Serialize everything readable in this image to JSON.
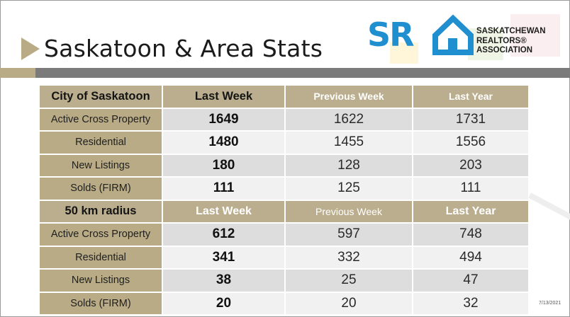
{
  "page_title": "Saskatoon & Area Stats",
  "logo": {
    "letters": "SR",
    "lines": [
      "SASKATCHEWAN",
      "REALTORS®",
      "ASSOCIATION"
    ],
    "brand_color": "#1f8fcf"
  },
  "colors": {
    "gold": "#b9ab86",
    "gray_bar": "#7b7b7b"
  },
  "table": {
    "sections": [
      {
        "headers": [
          "City of Saskatoon",
          "Last Week",
          "Previous Week",
          "Last Year"
        ],
        "rows": [
          {
            "label": "Active Cross Property",
            "last_week": "1649",
            "previous_week": "1622",
            "last_year": "1731"
          },
          {
            "label": "Residential",
            "last_week": "1480",
            "previous_week": "1455",
            "last_year": "1556"
          },
          {
            "label": "New Listings",
            "last_week": "180",
            "previous_week": "128",
            "last_year": "203"
          },
          {
            "label": "Solds (FIRM)",
            "last_week": "111",
            "previous_week": "125",
            "last_year": "111"
          }
        ]
      },
      {
        "headers": [
          "50 km radius",
          "Last Week",
          "Previous Week",
          "Last Year"
        ],
        "rows": [
          {
            "label": "Active Cross Property",
            "last_week": "612",
            "previous_week": "597",
            "last_year": "748"
          },
          {
            "label": "Residential",
            "last_week": "341",
            "previous_week": "332",
            "last_year": "494"
          },
          {
            "label": "New Listings",
            "last_week": "38",
            "previous_week": "25",
            "last_year": "47"
          },
          {
            "label": "Solds (FIRM)",
            "last_week": "20",
            "previous_week": "20",
            "last_year": "32"
          }
        ]
      }
    ]
  },
  "date": "7/13/2021"
}
